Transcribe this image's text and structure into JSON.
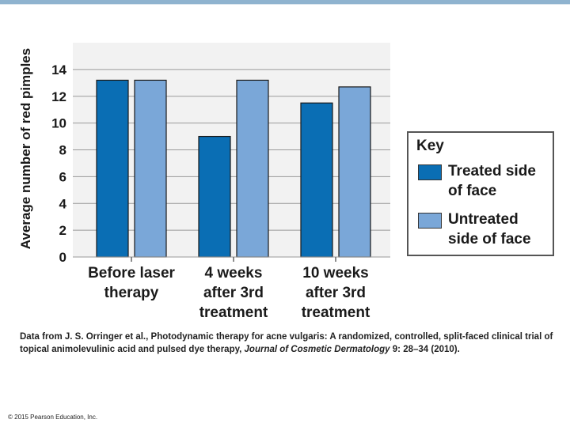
{
  "chart_data": {
    "type": "bar",
    "ylabel": "Average number of red pimples",
    "xlabel": "",
    "ylim": [
      0,
      16
    ],
    "yticks": [
      0,
      2,
      4,
      6,
      8,
      10,
      12,
      14
    ],
    "categories": [
      [
        "Before laser",
        "therapy"
      ],
      [
        "4 weeks",
        "after 3rd",
        "treatment"
      ],
      [
        "10 weeks",
        "after 3rd",
        "treatment"
      ]
    ],
    "series": [
      {
        "name": "Treated side of face",
        "color": "#0a6eb4",
        "values": [
          13.2,
          9.0,
          11.5
        ]
      },
      {
        "name": "Untreated side of face",
        "color": "#7aa7d8",
        "values": [
          13.2,
          13.2,
          12.7
        ]
      }
    ],
    "legend_title": "Key",
    "legend_position": "right"
  },
  "key": {
    "title": "Key",
    "items": [
      {
        "label_line1": "Treated side",
        "label_line2": "of face"
      },
      {
        "label_line1": "Untreated",
        "label_line2": "side of face"
      }
    ]
  },
  "source": {
    "prefix": "Data from J. S. Orringer et al., Photodynamic therapy for acne vulgaris: A randomized, controlled, split-faced clinical trial of topical animolevulinic acid and pulsed dye therapy, ",
    "journal": "Journal of Cosmetic Dermatology",
    "suffix": " 9: 28–34 (2010)."
  },
  "copyright": "© 2015 Pearson Education, Inc."
}
